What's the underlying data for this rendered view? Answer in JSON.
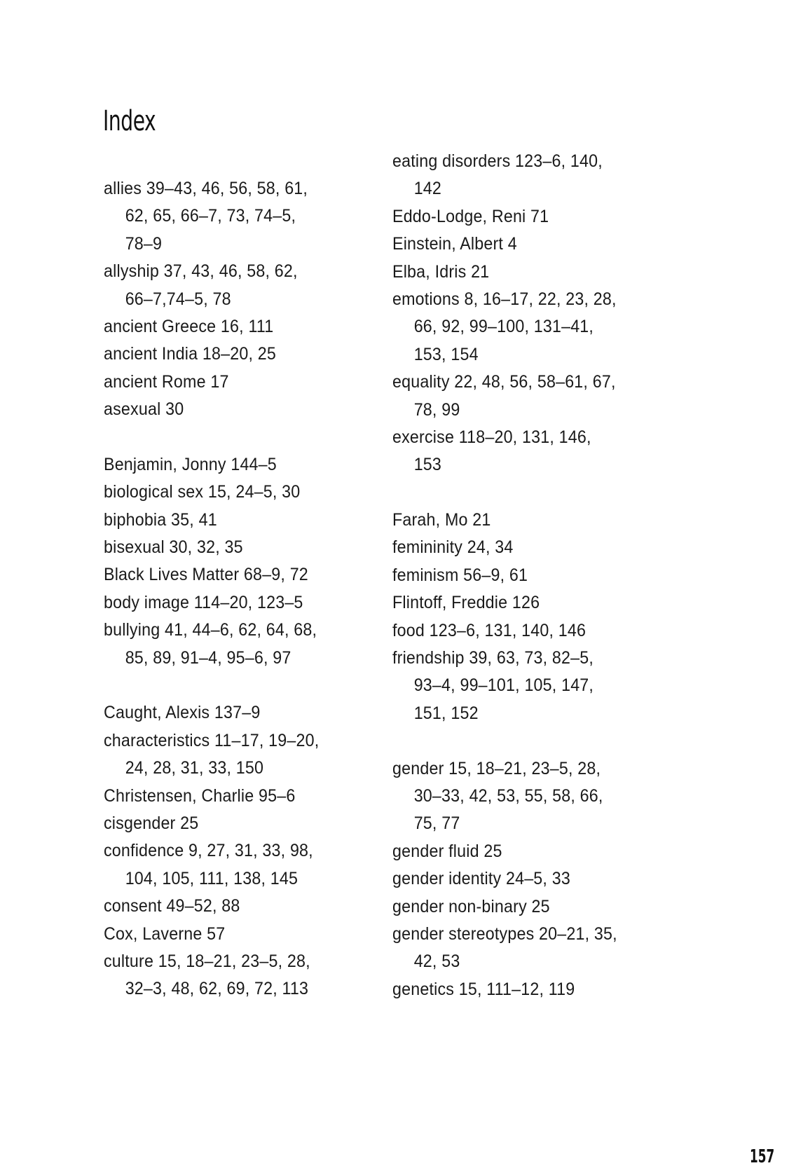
{
  "title": "Index",
  "page_number": "157",
  "columns": [
    {
      "groups": [
        [
          {
            "lines": [
              "allies 39–43, 46, 56, 58, 61,",
              "62, 65, 66–7, 73, 74–5,",
              "78–9"
            ]
          },
          {
            "lines": [
              "allyship 37, 43, 46, 58, 62,",
              "66–7,74–5, 78"
            ]
          },
          {
            "lines": [
              "ancient Greece 16, 111"
            ]
          },
          {
            "lines": [
              "ancient India 18–20, 25"
            ]
          },
          {
            "lines": [
              "ancient Rome 17"
            ]
          },
          {
            "lines": [
              "asexual 30"
            ]
          }
        ],
        [
          {
            "lines": [
              "Benjamin, Jonny 144–5"
            ]
          },
          {
            "lines": [
              "biological sex 15, 24–5, 30"
            ]
          },
          {
            "lines": [
              "biphobia 35, 41"
            ]
          },
          {
            "lines": [
              "bisexual 30, 32, 35"
            ]
          },
          {
            "lines": [
              "Black Lives Matter 68–9, 72"
            ]
          },
          {
            "lines": [
              "body image 114–20, 123–5"
            ]
          },
          {
            "lines": [
              "bullying 41, 44–6, 62, 64, 68,",
              "85, 89, 91–4, 95–6, 97"
            ]
          }
        ],
        [
          {
            "lines": [
              "Caught, Alexis 137–9"
            ]
          },
          {
            "lines": [
              "characteristics 11–17, 19–20,",
              "24, 28, 31, 33, 150"
            ]
          },
          {
            "lines": [
              "Christensen, Charlie 95–6"
            ]
          },
          {
            "lines": [
              "cisgender 25"
            ]
          },
          {
            "lines": [
              "confidence 9, 27, 31, 33, 98,",
              "104, 105, 111, 138, 145"
            ]
          },
          {
            "lines": [
              "consent 49–52, 88"
            ]
          },
          {
            "lines": [
              "Cox, Laverne 57"
            ]
          },
          {
            "lines": [
              "culture 15, 18–21, 23–5, 28,",
              "32–3, 48, 62, 69, 72, 113"
            ]
          }
        ]
      ]
    },
    {
      "groups": [
        [
          {
            "lines": [
              "eating disorders 123–6, 140,",
              "142"
            ]
          },
          {
            "lines": [
              "Eddo-Lodge, Reni 71"
            ]
          },
          {
            "lines": [
              "Einstein, Albert 4"
            ]
          },
          {
            "lines": [
              "Elba, Idris 21"
            ]
          },
          {
            "lines": [
              "emotions 8, 16–17, 22, 23, 28,",
              "66, 92, 99–100, 131–41,",
              "153, 154"
            ]
          },
          {
            "lines": [
              "equality 22, 48, 56, 58–61, 67,",
              "78, 99"
            ]
          },
          {
            "lines": [
              "exercise 118–20, 131, 146,",
              "153"
            ]
          }
        ],
        [
          {
            "lines": [
              "Farah, Mo 21"
            ]
          },
          {
            "lines": [
              "femininity 24, 34"
            ]
          },
          {
            "lines": [
              "feminism 56–9, 61"
            ]
          },
          {
            "lines": [
              "Flintoff, Freddie 126"
            ]
          },
          {
            "lines": [
              "food 123–6, 131, 140, 146"
            ]
          },
          {
            "lines": [
              "friendship 39, 63, 73, 82–5,",
              "93–4, 99–101, 105, 147,",
              "151, 152"
            ]
          }
        ],
        [
          {
            "lines": [
              "gender 15, 18–21, 23–5, 28,",
              "30–33, 42, 53, 55, 58, 66,",
              "75, 77"
            ]
          },
          {
            "lines": [
              "gender fluid 25"
            ]
          },
          {
            "lines": [
              "gender identity 24–5, 33"
            ]
          },
          {
            "lines": [
              "gender non-binary 25"
            ]
          },
          {
            "lines": [
              "gender stereotypes 20–21, 35,",
              "42, 53"
            ]
          },
          {
            "lines": [
              "genetics 15, 111–12, 119"
            ]
          }
        ]
      ]
    }
  ]
}
